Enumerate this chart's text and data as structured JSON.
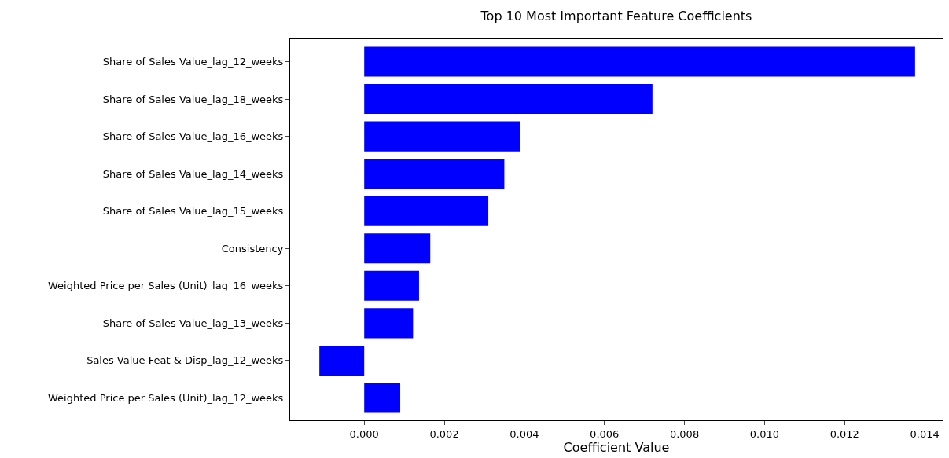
{
  "chart_data": {
    "type": "bar",
    "orientation": "horizontal",
    "title": "Top 10 Most Important Feature Coefficients",
    "xlabel": "Coefficient Value",
    "categories": [
      "Share of Sales Value_lag_12_weeks",
      "Share of Sales Value_lag_18_weeks",
      "Share of Sales Value_lag_16_weeks",
      "Share of Sales Value_lag_14_weeks",
      "Share of Sales Value_lag_15_weeks",
      "Consistency",
      "Weighted Price per Sales (Unit)_lag_16_weeks",
      "Share of Sales Value_lag_13_weeks",
      "Sales Value Feat & Disp_lag_12_weeks",
      "Weighted Price per Sales (Unit)_lag_12_weeks"
    ],
    "values": [
      0.01376,
      0.0072,
      0.0039,
      0.0035,
      0.0031,
      0.00165,
      0.00137,
      0.00122,
      -0.00112,
      0.0009
    ],
    "color": "#0000ff",
    "xlim": [
      -0.00185,
      0.01445
    ],
    "xticks": [
      {
        "value": 0,
        "label": "0.000"
      },
      {
        "value": 0.002,
        "label": "0.002"
      },
      {
        "value": 0.004,
        "label": "0.004"
      },
      {
        "value": 0.006,
        "label": "0.006"
      },
      {
        "value": 0.008,
        "label": "0.008"
      },
      {
        "value": 0.01,
        "label": "0.010"
      },
      {
        "value": 0.012,
        "label": "0.012"
      },
      {
        "value": 0.014,
        "label": "0.014"
      }
    ]
  }
}
